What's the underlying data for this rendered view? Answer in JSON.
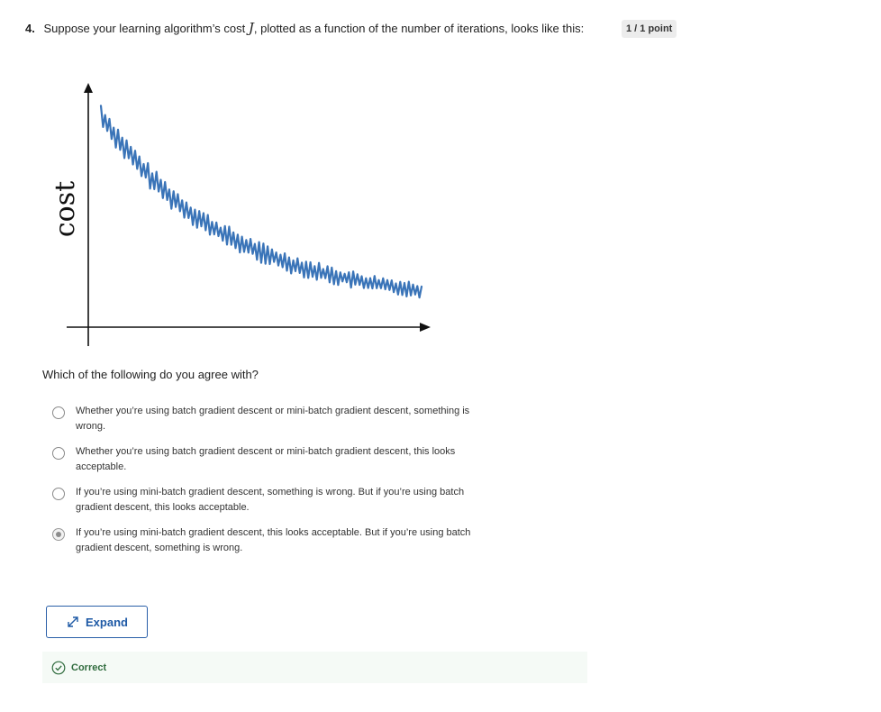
{
  "question": {
    "number": "4.",
    "text_before": "Suppose your learning algorithm’s cost ",
    "math_symbol": "J",
    "text_after": ", plotted as a function of the number of iterations, looks like this:",
    "points": "1 / 1 point"
  },
  "figure": {
    "ylabel": "cost",
    "line_color": "#3a74b8",
    "axis_color": "#111111"
  },
  "prompt": "Which of the following do you agree with?",
  "options": [
    {
      "text": "Whether you’re using batch gradient descent or mini-batch gradient descent, something is wrong.",
      "selected": false
    },
    {
      "text": "Whether you’re using batch gradient descent or mini-batch gradient descent, this looks acceptable.",
      "selected": false
    },
    {
      "text": "If you’re using mini-batch gradient descent, something is wrong. But if you’re using batch gradient descent, this looks acceptable.",
      "selected": false
    },
    {
      "text": "If you’re using mini-batch gradient descent, this looks acceptable. But if you’re using batch gradient descent, something is wrong.",
      "selected": true
    }
  ],
  "expand_button": {
    "label": "Expand",
    "icon": "expand-arrows-icon"
  },
  "feedback": {
    "status": "Correct",
    "icon": "check-circle-icon",
    "color": "#2f6b3d"
  }
}
